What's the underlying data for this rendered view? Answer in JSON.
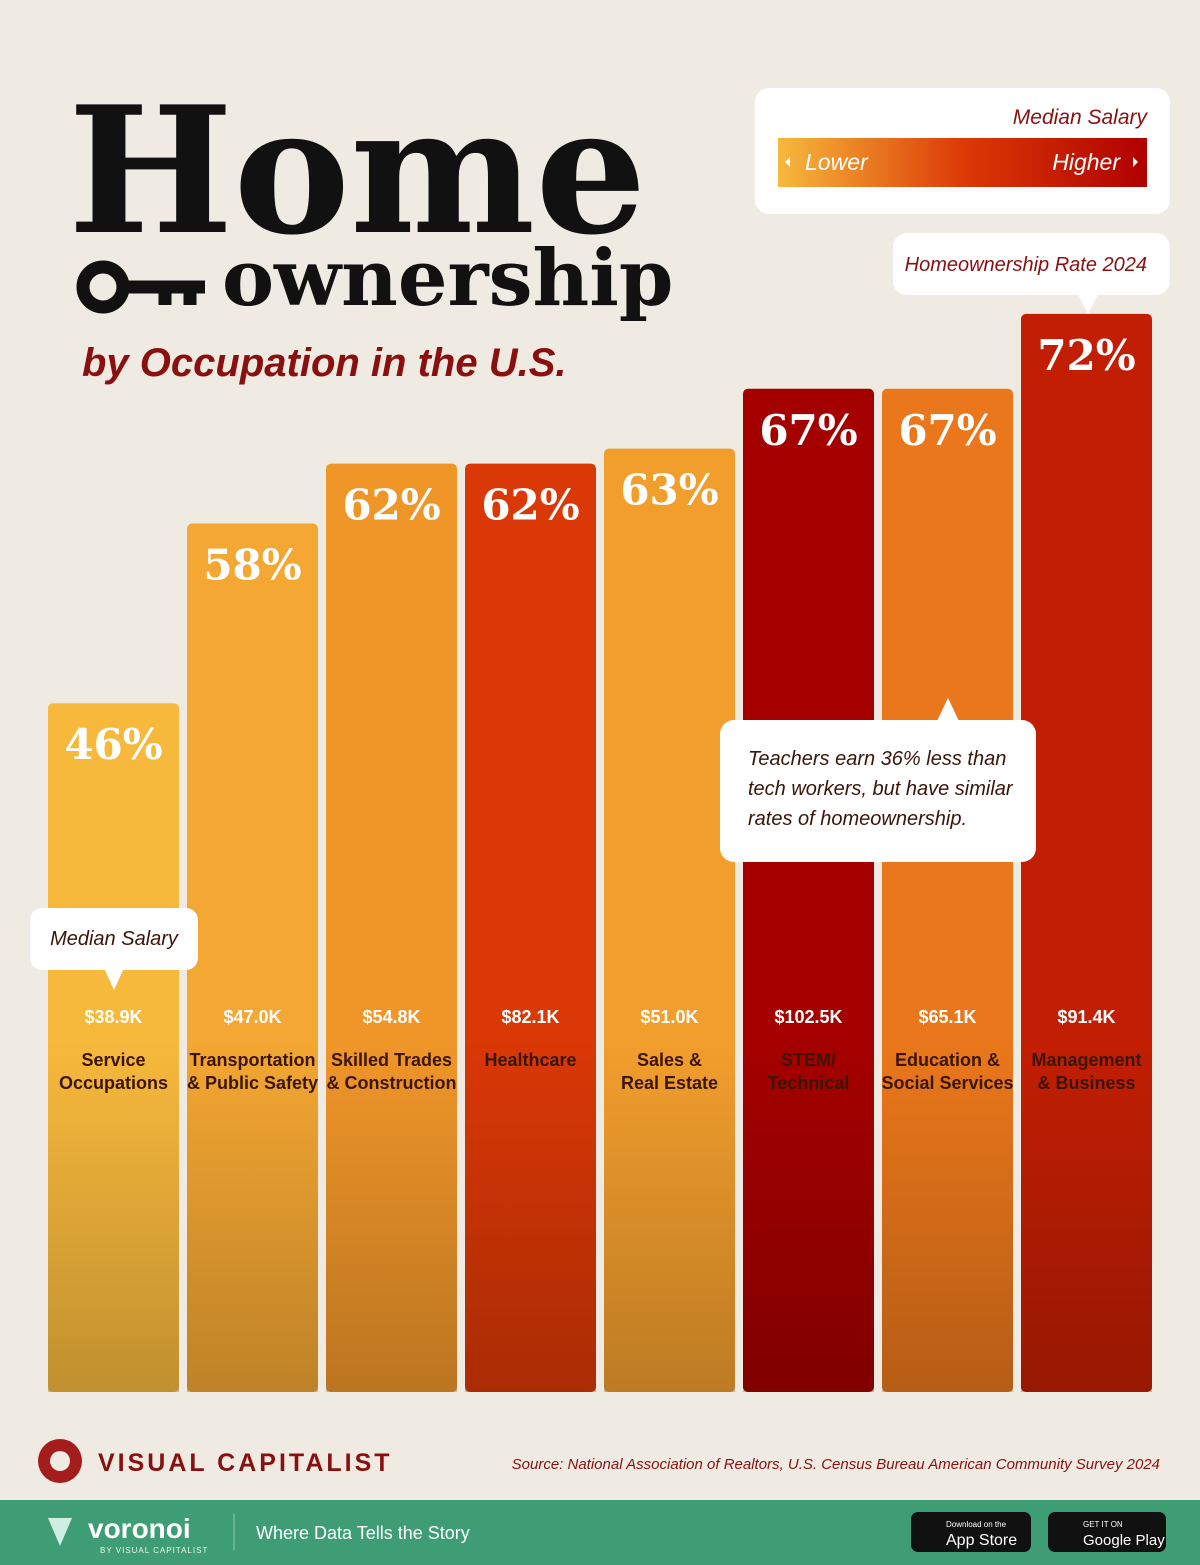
{
  "chart_data": {
    "type": "bar",
    "title": "Home",
    "title_line2": "ownership",
    "subtitle": "by Occupation in the U.S.",
    "categories": [
      "Service\nOccupations",
      "Transportation\n& Public Safety",
      "Skilled Trades\n& Construction",
      "Healthcare",
      "Sales &\nReal Estate",
      "STEM/\nTechnical",
      "Education &\nSocial Services",
      "Management\n& Business"
    ],
    "series": [
      {
        "name": "Homeownership Rate 2024",
        "values": [
          46,
          58,
          62,
          62,
          63,
          67,
          67,
          72
        ],
        "value_labels": [
          "46%",
          "58%",
          "62%",
          "62%",
          "63%",
          "67%",
          "67%",
          "72%"
        ]
      }
    ],
    "median_salary": {
      "name": "Median Salary",
      "values": [
        38900,
        47000,
        54800,
        82100,
        51000,
        102500,
        65100,
        91400
      ],
      "value_labels": [
        "$38.9K",
        "$47.0K",
        "$54.8K",
        "$82.1K",
        "$51.0K",
        "$102.5K",
        "$65.1K",
        "$91.4K"
      ]
    },
    "legend": {
      "title": "Median Salary",
      "low": "Lower",
      "high": "Higher",
      "colors": [
        "#f7b93c",
        "#ee8a22",
        "#dc3a06",
        "#a50000"
      ]
    },
    "ylim": [
      0,
      75
    ],
    "annotation": "Teachers earn 36% less than tech workers, but have similar rates of homeownership.",
    "source": "Source: National Association of Realtors, U.S. Census Bureau American Community Survey 2024"
  },
  "footer": {
    "brand": "VISUAL CAPITALIST",
    "voronoi": "voronoi",
    "voronoi_sub": "BY VISUAL CAPITALIST",
    "tagline": "Where Data Tells the Story",
    "app_store_small": "Download on the",
    "app_store": "App Store",
    "google_small": "GET IT ON",
    "google": "Google Play"
  }
}
